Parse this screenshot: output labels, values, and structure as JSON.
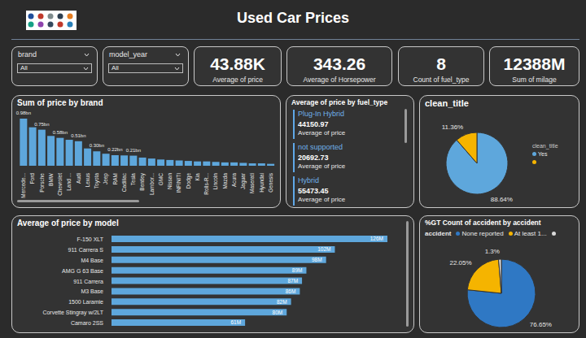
{
  "title": "Used Car Prices",
  "filters": [
    {
      "label": "brand",
      "value": "All"
    },
    {
      "label": "model_year",
      "value": "All"
    }
  ],
  "cards": [
    {
      "value": "43.88K",
      "label": "Average of price"
    },
    {
      "value": "343.26",
      "label": "Average of Horsepower"
    },
    {
      "value": "8",
      "label": "Count of fuel_type"
    },
    {
      "value": "12388M",
      "label": "Sum of milage"
    }
  ],
  "fuel_type_card": {
    "title": "Average of price by fuel_type",
    "rows": [
      {
        "name": "Plug-In Hybrid",
        "value": "44150.97",
        "label": "Average of price"
      },
      {
        "name": "not supported",
        "value": "20692.73",
        "label": "Average of price"
      },
      {
        "name": "Hybrid",
        "value": "55473.45",
        "label": "Average of price"
      }
    ]
  },
  "chart_data": [
    {
      "type": "bar",
      "title": "Sum of price by brand",
      "categories": [
        "Mercede...",
        "Ford",
        "Porsche",
        "BMW",
        "Chevrolet",
        "Land ...",
        "Audi",
        "Lexus",
        "Toyota",
        "Jeep",
        "RAM",
        "Cadillac",
        "Tesla",
        "Bentley",
        "Lambor...",
        "GMC",
        "Nissan",
        "INFINITI",
        "Dodge",
        "Kia",
        "Rolls-R...",
        "Lincoln",
        "Mazda",
        "Acura",
        "Jaguar",
        "Maserati",
        "Hyundai",
        "Genesis"
      ],
      "values": [
        0.98,
        0.8,
        0.75,
        0.62,
        0.58,
        0.54,
        0.51,
        0.36,
        0.3,
        0.25,
        0.22,
        0.215,
        0.21,
        0.17,
        0.15,
        0.13,
        0.12,
        0.11,
        0.1,
        0.09,
        0.09,
        0.08,
        0.07,
        0.07,
        0.06,
        0.05,
        0.05,
        0.04
      ],
      "value_labels": [
        "0.98bn",
        null,
        "0.75bn",
        null,
        "0.58bn",
        null,
        "0.51bn",
        null,
        "0.30bn",
        null,
        "0.22bn",
        null,
        "0.21bn",
        null,
        null,
        null,
        null,
        null,
        null,
        null,
        null,
        null,
        null,
        null,
        null,
        null,
        null,
        null
      ],
      "color": "#5ea7dc",
      "data_labels": true,
      "tick_labels": "x"
    },
    {
      "type": "pie",
      "title": "clean_title",
      "legend_title": "clean_title",
      "categories": [
        "Yes",
        null
      ],
      "values": [
        88.64,
        11.36
      ],
      "value_labels": [
        "88.64%",
        "11.36%"
      ],
      "colors": [
        "#5ea7dc",
        "#f5b400"
      ],
      "legend": "right"
    },
    {
      "type": "bar",
      "orientation": "horizontal",
      "title": "Average of price by model",
      "categories": [
        "F-150 XLT",
        "911 Carrera S",
        "M4 Base",
        "AMG G 63 Base",
        "911 Carrera",
        "M3 Base",
        "1500 Laramie",
        "Corvette Stingray w/2LT",
        "Camaro 2SS"
      ],
      "values": [
        126,
        102,
        98,
        89,
        87,
        86,
        82,
        80,
        61
      ],
      "value_labels": [
        "126M",
        "102M",
        "98M",
        "89M",
        "87M",
        "86M",
        "82M",
        "80M",
        "61M"
      ],
      "color": "#5ea7dc",
      "data_labels": true,
      "tick_labels": "y"
    },
    {
      "type": "pie",
      "title": "%GT Count of accident by accident",
      "legend_title": "accident",
      "categories": [
        "None reported",
        "At least 1...",
        null
      ],
      "values": [
        76.65,
        22.05,
        1.3
      ],
      "value_labels": [
        "76.65%",
        "22.05%",
        "1.3%"
      ],
      "colors": [
        "#2f78c4",
        "#f5b400",
        "#d9d9d9"
      ],
      "legend": "top"
    }
  ]
}
